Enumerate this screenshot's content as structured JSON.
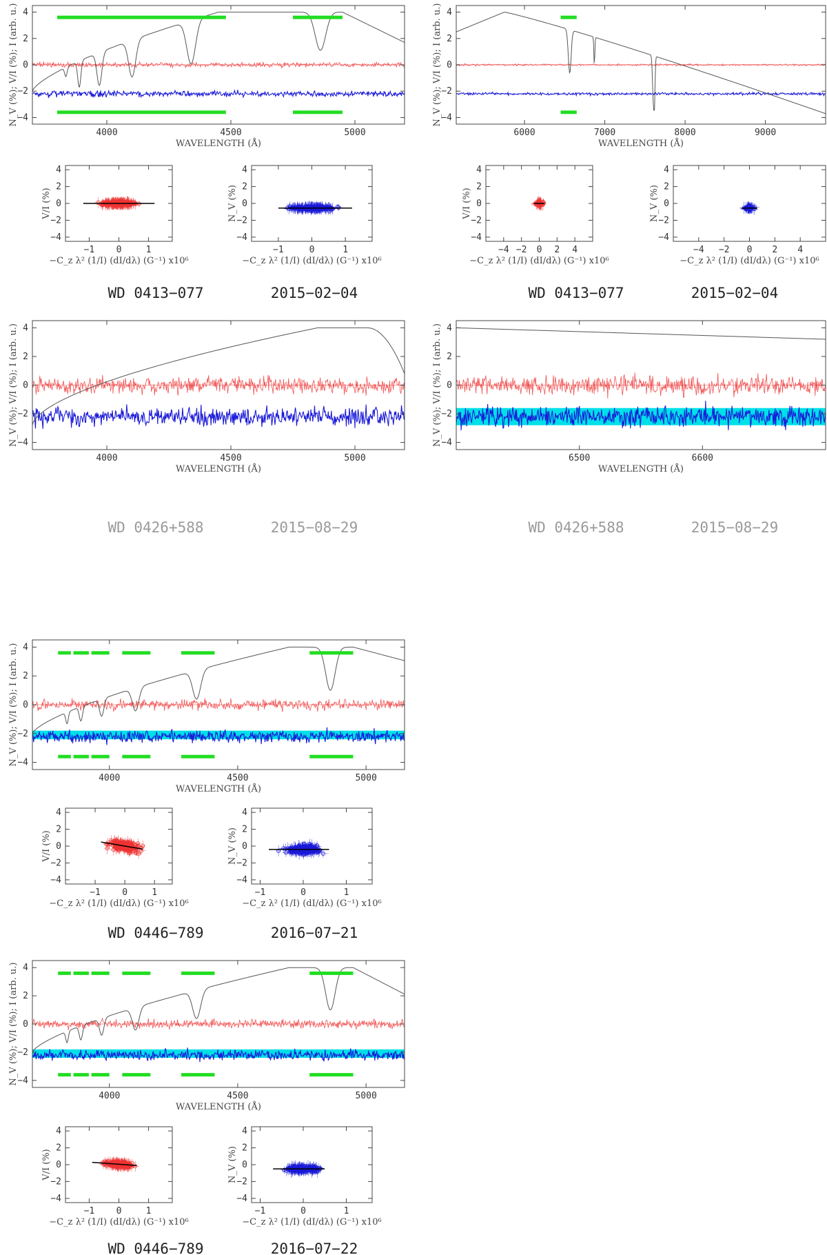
{
  "colors": {
    "intensity": "#555555",
    "stokes_v": "#ee3333",
    "null": "#1a1ad8",
    "band": "#00e0e8",
    "windows": "#22dd22",
    "fit": "#000000"
  },
  "axis_labels": {
    "wavelength": "WAVELENGTH (Å)",
    "spectrum_y": "N_V (%); V/I (%); I (arb. u.)",
    "fit_x": "−C_z λ² (1/I) (dI/dλ) (G⁻¹) x10⁶",
    "fit_y_v": "V/I (%)",
    "fit_y_n": "N_V (%)"
  },
  "captions": [
    {
      "star": "WD 0413−077",
      "date": "2015−02−04",
      "dim": false
    },
    {
      "star": "WD 0413−077",
      "date": "2015−02−04",
      "dim": false
    },
    {
      "star": "WD 0426+588",
      "date": "2015−08−29",
      "dim": true
    },
    {
      "star": "WD 0426+588",
      "date": "2015−08−29",
      "dim": true
    },
    {
      "star": "WD 0446−789",
      "date": "2016−07−21",
      "dim": false
    },
    {
      "star": "WD 0446−789",
      "date": "2016−07−22",
      "dim": false
    }
  ],
  "chart_data": [
    {
      "type": "line",
      "panel": "WD 0413-077 2015-02-04 blue",
      "xlim": [
        3700,
        5200
      ],
      "ylim": [
        -4.5,
        4.5
      ],
      "x_ticks": [
        4000,
        4500,
        5000
      ],
      "y_ticks": [
        -4,
        -2,
        0,
        2,
        4
      ],
      "noise": {
        "v": 0.12,
        "n": 0.15
      },
      "intensity_profile": {
        "kind": "balmer",
        "x_peak": 4450,
        "fall_start": 4950,
        "fall_end": 5200,
        "end_value": 1.7
      },
      "lines": [
        [
          3835,
          0.7,
          7
        ],
        [
          3889,
          2.0,
          9
        ],
        [
          3970,
          2.5,
          14
        ],
        [
          4102,
          2.8,
          20
        ],
        [
          4340,
          3.3,
          25
        ],
        [
          4861,
          2.9,
          30
        ]
      ],
      "windows": [
        [
          3800,
          4480
        ],
        [
          4750,
          4950
        ]
      ],
      "band": null
    },
    {
      "type": "line",
      "panel": "WD 0413-077 2015-02-04 red",
      "xlim": [
        5150,
        9750
      ],
      "ylim": [
        -4.5,
        4.5
      ],
      "x_ticks": [
        6000,
        7000,
        8000,
        9000
      ],
      "y_ticks": [
        -4,
        -2,
        0,
        2,
        4
      ],
      "noise": {
        "v": 0.05,
        "n": 0.07
      },
      "intensity_profile": {
        "kind": "red",
        "start_value": 2.5,
        "x_peak": 5750,
        "slope_end": 9700,
        "end_value": -3.6
      },
      "lines": [
        [
          6563,
          3.3,
          25
        ],
        [
          6870,
          2.2,
          8
        ],
        [
          7605,
          3.5,
          15
        ],
        [
          7620,
          2.6,
          10
        ]
      ],
      "windows": [
        [
          6450,
          6650
        ]
      ],
      "band": null
    },
    {
      "type": "scatter",
      "panel": "WD 0413-077 V/I",
      "xlim": [
        -1.8,
        1.8
      ],
      "ylim": [
        -4.5,
        4.5
      ],
      "x_ticks": [
        -1,
        0,
        1
      ],
      "y_ticks": [
        -4,
        -2,
        0,
        2,
        4
      ],
      "spread": {
        "x": 0.4,
        "y": 0.12
      },
      "center": 0.0,
      "slope": 0.0,
      "fit_range": [
        -1.2,
        1.2
      ],
      "n_points": 260
    },
    {
      "type": "scatter",
      "panel": "WD 0413-077 N_V",
      "xlim": [
        -1.8,
        1.8
      ],
      "ylim": [
        -4.5,
        4.5
      ],
      "x_ticks": [
        -1,
        0,
        1
      ],
      "y_ticks": [
        -4,
        -2,
        0,
        2,
        4
      ],
      "spread": {
        "x": 0.45,
        "y": 0.12
      },
      "center": -0.55,
      "slope": 0.0,
      "fit_range": [
        -1.0,
        1.2
      ],
      "n_points": 260
    },
    {
      "type": "scatter",
      "panel": "WD 0413-077 V/I red",
      "xlim": [
        -6,
        6
      ],
      "ylim": [
        -4.5,
        4.5
      ],
      "x_ticks": [
        -4,
        -2,
        0,
        2,
        4
      ],
      "y_ticks": [
        -4,
        -2,
        0,
        2,
        4
      ],
      "spread": {
        "x": 0.25,
        "y": 0.1
      },
      "center": 0.0,
      "slope": 0.0,
      "fit_range": [
        -0.6,
        0.6
      ],
      "n_points": 60
    },
    {
      "type": "scatter",
      "panel": "WD 0413-077 N_V red",
      "xlim": [
        -6,
        6
      ],
      "ylim": [
        -4.5,
        4.5
      ],
      "x_ticks": [
        -4,
        -2,
        0,
        2,
        4
      ],
      "y_ticks": [
        -4,
        -2,
        0,
        2,
        4
      ],
      "spread": {
        "x": 0.25,
        "y": 0.1
      },
      "center": -0.55,
      "slope": 0.0,
      "fit_range": [
        -0.6,
        0.6
      ],
      "n_points": 60
    },
    {
      "type": "line",
      "panel": "WD 0426+588 2015-08-29 blue",
      "xlim": [
        3700,
        5200
      ],
      "ylim": [
        -4.5,
        4.5
      ],
      "x_ticks": [
        4000,
        4500,
        5000
      ],
      "y_ticks": [
        -4,
        -2,
        0,
        2,
        4
      ],
      "noise": {
        "v": 0.4,
        "n": 0.45
      },
      "intensity_profile": {
        "kind": "rising",
        "start_value": -2.8,
        "x_peak": 4850,
        "fall_start": 5050,
        "fall_end": 5200,
        "end_value": 0.8
      },
      "lines": [],
      "windows": [],
      "band": null
    },
    {
      "type": "line",
      "panel": "WD 0426+588 2015-08-29 red",
      "xlim": [
        6400,
        6700
      ],
      "ylim": [
        -4.5,
        4.5
      ],
      "x_ticks": [
        6500,
        6600
      ],
      "y_ticks": [
        -4,
        -2,
        0,
        2,
        4
      ],
      "noise": {
        "v": 0.5,
        "n": 0.5
      },
      "intensity_profile": {
        "kind": "flat",
        "start_value": 4.0,
        "end_value": 3.2
      },
      "lines": [],
      "windows": [],
      "band": [
        -2.8,
        -1.6
      ]
    },
    {
      "type": "line",
      "panel": "WD 0446-789 2016-07-21",
      "xlim": [
        3700,
        5150
      ],
      "ylim": [
        -4.5,
        4.5
      ],
      "x_ticks": [
        4000,
        4500,
        5000
      ],
      "y_ticks": [
        -4,
        -2,
        0,
        2,
        4
      ],
      "noise": {
        "v": 0.25,
        "n": 0.3
      },
      "intensity_profile": {
        "kind": "balmer",
        "x_peak": 4700,
        "fall_start": 4950,
        "fall_end": 5120,
        "end_value": 3.2
      },
      "lines": [
        [
          3835,
          0.8,
          7
        ],
        [
          3889,
          1.0,
          9
        ],
        [
          3970,
          1.2,
          12
        ],
        [
          4102,
          1.6,
          18
        ],
        [
          4340,
          2.0,
          22
        ],
        [
          4861,
          3.0,
          26
        ]
      ],
      "windows": [
        [
          3800,
          3850
        ],
        [
          3860,
          3920
        ],
        [
          3930,
          4000
        ],
        [
          4050,
          4160
        ],
        [
          4280,
          4410
        ],
        [
          4780,
          4950
        ]
      ],
      "band": [
        -2.4,
        -1.8
      ]
    },
    {
      "type": "scatter",
      "panel": "WD 0446-789 V/I 2016-07-21",
      "xlim": [
        -2,
        1.6
      ],
      "ylim": [
        -4.5,
        4.5
      ],
      "x_ticks": [
        -1,
        0,
        1
      ],
      "y_ticks": [
        -4,
        -2,
        0,
        2,
        4
      ],
      "spread": {
        "x": 0.3,
        "y": 0.35
      },
      "center": 0.0,
      "slope": -0.6,
      "fit_range": [
        -0.8,
        0.6
      ],
      "n_points": 220
    },
    {
      "type": "scatter",
      "panel": "WD 0446-789 N_V 2016-07-21",
      "xlim": [
        -1.2,
        1.6
      ],
      "ylim": [
        -4.5,
        4.5
      ],
      "x_ticks": [
        -1,
        0,
        1
      ],
      "y_ticks": [
        -4,
        -2,
        0,
        2,
        4
      ],
      "spread": {
        "x": 0.25,
        "y": 0.35
      },
      "center": -0.4,
      "slope": 0.0,
      "fit_range": [
        -0.8,
        0.6
      ],
      "n_points": 220
    },
    {
      "type": "line",
      "panel": "WD 0446-789 2016-07-22",
      "xlim": [
        3700,
        5150
      ],
      "ylim": [
        -4.5,
        4.5
      ],
      "x_ticks": [
        4000,
        4500,
        5000
      ],
      "y_ticks": [
        -4,
        -2,
        0,
        2,
        4
      ],
      "noise": {
        "v": 0.22,
        "n": 0.25
      },
      "intensity_profile": {
        "kind": "balmer",
        "x_peak": 4700,
        "fall_start": 4950,
        "fall_end": 5120,
        "end_value": 2.4
      },
      "lines": [
        [
          3835,
          0.8,
          7
        ],
        [
          3889,
          1.0,
          9
        ],
        [
          3970,
          1.2,
          12
        ],
        [
          4102,
          1.6,
          18
        ],
        [
          4340,
          2.0,
          22
        ],
        [
          4861,
          3.0,
          26
        ]
      ],
      "windows": [
        [
          3800,
          3850
        ],
        [
          3860,
          3920
        ],
        [
          3930,
          4000
        ],
        [
          4050,
          4160
        ],
        [
          4280,
          4410
        ],
        [
          4780,
          4950
        ]
      ],
      "band": [
        -2.4,
        -1.8
      ]
    },
    {
      "type": "scatter",
      "panel": "WD 0446-789 V/I 2016-07-22",
      "xlim": [
        -1.8,
        1.8
      ],
      "ylim": [
        -4.5,
        4.5
      ],
      "x_ticks": [
        -1,
        0,
        1
      ],
      "y_ticks": [
        -4,
        -2,
        0,
        2,
        4
      ],
      "spread": {
        "x": 0.3,
        "y": 0.2
      },
      "center": 0.05,
      "slope": -0.25,
      "fit_range": [
        -0.9,
        0.6
      ],
      "n_points": 220
    },
    {
      "type": "scatter",
      "panel": "WD 0446-789 N_V 2016-07-22",
      "xlim": [
        -1.2,
        1.6
      ],
      "ylim": [
        -4.5,
        4.5
      ],
      "x_ticks": [
        -1,
        0,
        1
      ],
      "y_ticks": [
        -4,
        -2,
        0,
        2,
        4
      ],
      "spread": {
        "x": 0.25,
        "y": 0.2
      },
      "center": -0.5,
      "slope": 0.0,
      "fit_range": [
        -0.7,
        0.5
      ],
      "n_points": 220
    }
  ]
}
